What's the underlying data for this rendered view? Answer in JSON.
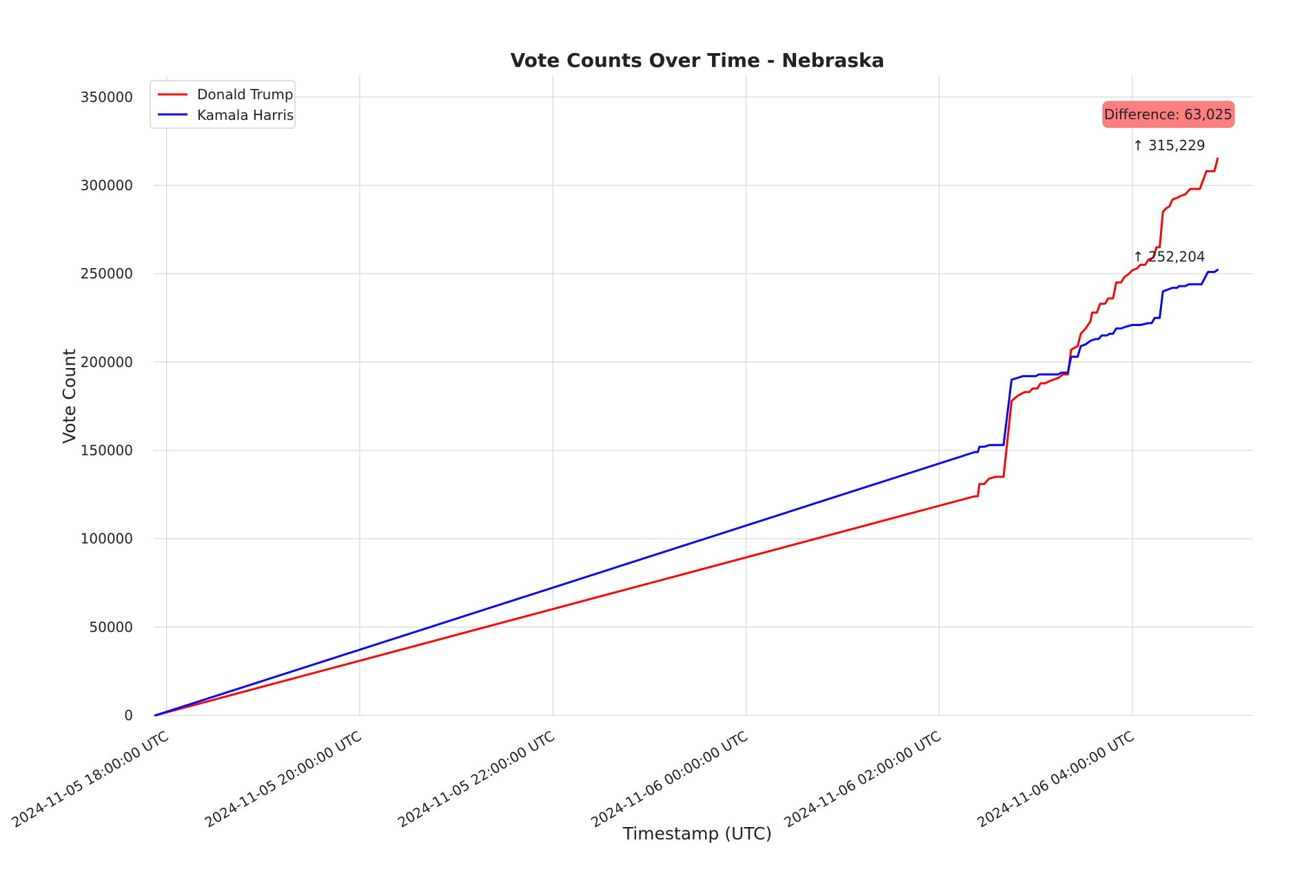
{
  "chart_data": {
    "type": "line",
    "title": "Vote Counts Over Time - Nebraska",
    "xlabel": "Timestamp (UTC)",
    "ylabel": "Vote Count",
    "ylim": [
      0,
      362000
    ],
    "yticks": [
      0,
      50000,
      100000,
      150000,
      200000,
      250000,
      300000,
      350000
    ],
    "ytick_labels": [
      "0",
      "50000",
      "100000",
      "150000",
      "200000",
      "250000",
      "300000",
      "350000"
    ],
    "xlim": [
      "2024-11-05T17:52:00Z",
      "2024-11-06T05:15:00Z"
    ],
    "xticks": [
      "2024-11-05T18:00:00Z",
      "2024-11-05T20:00:00Z",
      "2024-11-05T22:00:00Z",
      "2024-11-06T00:00:00Z",
      "2024-11-06T02:00:00Z",
      "2024-11-06T04:00:00Z"
    ],
    "xtick_labels": [
      "2024-11-05 18:00:00 UTC",
      "2024-11-05 20:00:00 UTC",
      "2024-11-05 22:00:00 UTC",
      "2024-11-06 00:00:00 UTC",
      "2024-11-06 02:00:00 UTC",
      "2024-11-06 04:00:00 UTC"
    ],
    "grid": true,
    "legend": "top-left",
    "series": [
      {
        "name": "Donald Trump",
        "color": "#ff0000",
        "points": [
          [
            "2024-11-05T17:53:00Z",
            0
          ],
          [
            "2024-11-06T02:22:00Z",
            124000
          ],
          [
            "2024-11-06T02:24:00Z",
            124000
          ],
          [
            "2024-11-06T02:25:00Z",
            131000
          ],
          [
            "2024-11-06T02:28:00Z",
            131000
          ],
          [
            "2024-11-06T02:31:00Z",
            134000
          ],
          [
            "2024-11-06T02:35:00Z",
            135000
          ],
          [
            "2024-11-06T02:40:00Z",
            135000
          ],
          [
            "2024-11-06T02:45:00Z",
            178000
          ],
          [
            "2024-11-06T02:49:00Z",
            181000
          ],
          [
            "2024-11-06T02:53:00Z",
            183000
          ],
          [
            "2024-11-06T02:56:00Z",
            183000
          ],
          [
            "2024-11-06T02:58:00Z",
            185000
          ],
          [
            "2024-11-06T03:01:00Z",
            185000
          ],
          [
            "2024-11-06T03:03:00Z",
            188000
          ],
          [
            "2024-11-06T03:06:00Z",
            188000
          ],
          [
            "2024-11-06T03:08:00Z",
            189000
          ],
          [
            "2024-11-06T03:11:00Z",
            190000
          ],
          [
            "2024-11-06T03:14:00Z",
            191000
          ],
          [
            "2024-11-06T03:17:00Z",
            193000
          ],
          [
            "2024-11-06T03:20:00Z",
            193000
          ],
          [
            "2024-11-06T03:22:00Z",
            207000
          ],
          [
            "2024-11-06T03:26:00Z",
            209000
          ],
          [
            "2024-11-06T03:28:00Z",
            216000
          ],
          [
            "2024-11-06T03:31:00Z",
            219000
          ],
          [
            "2024-11-06T03:34:00Z",
            223000
          ],
          [
            "2024-11-06T03:35:00Z",
            228000
          ],
          [
            "2024-11-06T03:38:00Z",
            228000
          ],
          [
            "2024-11-06T03:40:00Z",
            233000
          ],
          [
            "2024-11-06T03:43:00Z",
            233000
          ],
          [
            "2024-11-06T03:45:00Z",
            236000
          ],
          [
            "2024-11-06T03:48:00Z",
            236000
          ],
          [
            "2024-11-06T03:50:00Z",
            245000
          ],
          [
            "2024-11-06T03:53:00Z",
            245000
          ],
          [
            "2024-11-06T03:55:00Z",
            248000
          ],
          [
            "2024-11-06T03:58:00Z",
            250000
          ],
          [
            "2024-11-06T04:00:00Z",
            252000
          ],
          [
            "2024-11-06T04:03:00Z",
            253000
          ],
          [
            "2024-11-06T04:05:00Z",
            255000
          ],
          [
            "2024-11-06T04:08:00Z",
            255000
          ],
          [
            "2024-11-06T04:10:00Z",
            258000
          ],
          [
            "2024-11-06T04:13:00Z",
            259000
          ],
          [
            "2024-11-06T04:15:00Z",
            265000
          ],
          [
            "2024-11-06T04:17:00Z",
            265000
          ],
          [
            "2024-11-06T04:19:00Z",
            285000
          ],
          [
            "2024-11-06T04:21:00Z",
            287000
          ],
          [
            "2024-11-06T04:23:00Z",
            288000
          ],
          [
            "2024-11-06T04:25:00Z",
            292000
          ],
          [
            "2024-11-06T04:28:00Z",
            293000
          ],
          [
            "2024-11-06T04:30:00Z",
            294000
          ],
          [
            "2024-11-06T04:33:00Z",
            295000
          ],
          [
            "2024-11-06T04:36:00Z",
            298000
          ],
          [
            "2024-11-06T04:42:00Z",
            298000
          ],
          [
            "2024-11-06T04:46:00Z",
            308000
          ],
          [
            "2024-11-06T04:51:00Z",
            308000
          ],
          [
            "2024-11-06T04:53:00Z",
            315229
          ]
        ]
      },
      {
        "name": "Kamala Harris",
        "color": "#0000ff",
        "points": [
          [
            "2024-11-05T17:53:00Z",
            0
          ],
          [
            "2024-11-06T02:22:00Z",
            149000
          ],
          [
            "2024-11-06T02:24:00Z",
            149000
          ],
          [
            "2024-11-06T02:25:00Z",
            152000
          ],
          [
            "2024-11-06T02:28:00Z",
            152000
          ],
          [
            "2024-11-06T02:31:00Z",
            153000
          ],
          [
            "2024-11-06T02:40:00Z",
            153000
          ],
          [
            "2024-11-06T02:45:00Z",
            190000
          ],
          [
            "2024-11-06T02:52:00Z",
            192000
          ],
          [
            "2024-11-06T03:00:00Z",
            192000
          ],
          [
            "2024-11-06T03:02:00Z",
            193000
          ],
          [
            "2024-11-06T03:14:00Z",
            193000
          ],
          [
            "2024-11-06T03:16:00Z",
            194000
          ],
          [
            "2024-11-06T03:20:00Z",
            194000
          ],
          [
            "2024-11-06T03:22:00Z",
            203000
          ],
          [
            "2024-11-06T03:26:00Z",
            203000
          ],
          [
            "2024-11-06T03:28:00Z",
            209000
          ],
          [
            "2024-11-06T03:31:00Z",
            210000
          ],
          [
            "2024-11-06T03:34:00Z",
            212000
          ],
          [
            "2024-11-06T03:37:00Z",
            213000
          ],
          [
            "2024-11-06T03:39:00Z",
            213000
          ],
          [
            "2024-11-06T03:41:00Z",
            215000
          ],
          [
            "2024-11-06T03:44:00Z",
            215000
          ],
          [
            "2024-11-06T03:46:00Z",
            216000
          ],
          [
            "2024-11-06T03:48:00Z",
            216000
          ],
          [
            "2024-11-06T03:50:00Z",
            219000
          ],
          [
            "2024-11-06T03:53:00Z",
            219000
          ],
          [
            "2024-11-06T03:56:00Z",
            220000
          ],
          [
            "2024-11-06T04:00:00Z",
            221000
          ],
          [
            "2024-11-06T04:05:00Z",
            221000
          ],
          [
            "2024-11-06T04:10:00Z",
            222000
          ],
          [
            "2024-11-06T04:12:00Z",
            222000
          ],
          [
            "2024-11-06T04:14:00Z",
            225000
          ],
          [
            "2024-11-06T04:17:00Z",
            225000
          ],
          [
            "2024-11-06T04:19:00Z",
            240000
          ],
          [
            "2024-11-06T04:22:00Z",
            241000
          ],
          [
            "2024-11-06T04:25:00Z",
            242000
          ],
          [
            "2024-11-06T04:28:00Z",
            242000
          ],
          [
            "2024-11-06T04:29:00Z",
            243000
          ],
          [
            "2024-11-06T04:33:00Z",
            243000
          ],
          [
            "2024-11-06T04:35:00Z",
            244000
          ],
          [
            "2024-11-06T04:43:00Z",
            244000
          ],
          [
            "2024-11-06T04:47:00Z",
            251000
          ],
          [
            "2024-11-06T04:51:00Z",
            251000
          ],
          [
            "2024-11-06T04:53:00Z",
            252204
          ]
        ]
      }
    ],
    "annotations": [
      {
        "text": "↑ 315,229",
        "x": "2024-11-06T04:00:00Z",
        "y": 315229
      },
      {
        "text": "↑ 252,204",
        "x": "2024-11-06T04:00:00Z",
        "y": 252204
      }
    ],
    "difference_box": {
      "text": "Difference: 63,025",
      "bg_color": "#ff7f7f"
    }
  }
}
